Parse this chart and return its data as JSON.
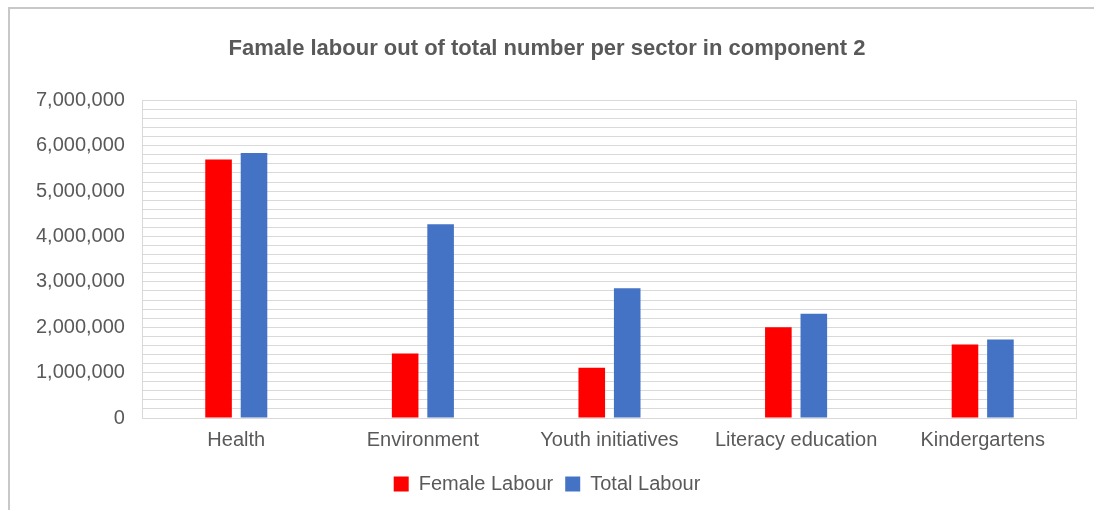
{
  "chart_data": {
    "type": "bar",
    "title": "Famale labour out of total number per sector in component 2",
    "categories": [
      "Health",
      "Environment",
      "Youth initiatives",
      "Literacy education",
      "Kindergartens"
    ],
    "series": [
      {
        "name": "Female Labour",
        "color": "#ff0000",
        "values": [
          5700000,
          1420000,
          1110000,
          2000000,
          1620000
        ]
      },
      {
        "name": "Total Labour",
        "color": "#4472c4",
        "values": [
          5840000,
          4270000,
          2860000,
          2300000,
          1730000
        ]
      }
    ],
    "ylim": [
      0,
      7000000
    ],
    "yticks": [
      {
        "value": 0,
        "label": "0"
      },
      {
        "value": 200000,
        "label": null
      },
      {
        "value": 400000,
        "label": null
      },
      {
        "value": 600000,
        "label": null
      },
      {
        "value": 800000,
        "label": null
      },
      {
        "value": 1000000,
        "label": "1,000,000"
      },
      {
        "value": 1200000,
        "label": null
      },
      {
        "value": 1400000,
        "label": null
      },
      {
        "value": 1600000,
        "label": null
      },
      {
        "value": 1800000,
        "label": null
      },
      {
        "value": 2000000,
        "label": "2,000,000"
      },
      {
        "value": 2200000,
        "label": null
      },
      {
        "value": 2400000,
        "label": null
      },
      {
        "value": 2600000,
        "label": null
      },
      {
        "value": 2800000,
        "label": null
      },
      {
        "value": 3000000,
        "label": "3,000,000"
      },
      {
        "value": 3200000,
        "label": null
      },
      {
        "value": 3400000,
        "label": null
      },
      {
        "value": 3600000,
        "label": null
      },
      {
        "value": 3800000,
        "label": null
      },
      {
        "value": 4000000,
        "label": "4,000,000"
      },
      {
        "value": 4200000,
        "label": null
      },
      {
        "value": 4400000,
        "label": null
      },
      {
        "value": 4600000,
        "label": null
      },
      {
        "value": 4800000,
        "label": null
      },
      {
        "value": 5000000,
        "label": "5,000,000"
      },
      {
        "value": 5200000,
        "label": null
      },
      {
        "value": 5400000,
        "label": null
      },
      {
        "value": 5600000,
        "label": null
      },
      {
        "value": 5800000,
        "label": null
      },
      {
        "value": 6000000,
        "label": "6,000,000"
      },
      {
        "value": 6200000,
        "label": null
      },
      {
        "value": 6400000,
        "label": null
      },
      {
        "value": 6600000,
        "label": null
      },
      {
        "value": 6800000,
        "label": null
      },
      {
        "value": 7000000,
        "label": "7,000,000"
      }
    ],
    "grid": "y",
    "legend": "bottom"
  }
}
